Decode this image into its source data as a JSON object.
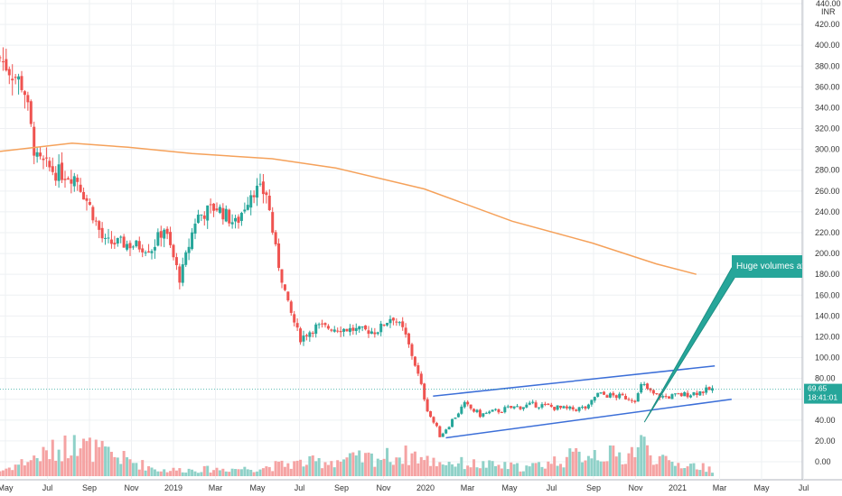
{
  "chart_data": {
    "type": "candlestick",
    "currency_label": "INR",
    "y_axis": {
      "min": 0,
      "max": 440,
      "tick_step": 20,
      "side": "right",
      "top_label": "440.00"
    },
    "x_ticks": [
      "May",
      "Jul",
      "Sep",
      "Nov",
      "2019",
      "Mar",
      "May",
      "Jul",
      "Sep",
      "Nov",
      "2020",
      "Mar",
      "May",
      "Jul",
      "Sep",
      "Nov",
      "2021",
      "Mar",
      "May",
      "Jul"
    ],
    "moving_average": {
      "color": "#f5a15a",
      "points": [
        [
          0,
          298
        ],
        [
          0.09,
          306
        ],
        [
          0.16,
          302
        ],
        [
          0.24,
          296
        ],
        [
          0.34,
          291
        ],
        [
          0.42,
          282
        ],
        [
          0.53,
          262
        ],
        [
          0.64,
          231
        ],
        [
          0.74,
          210
        ],
        [
          0.82,
          190
        ],
        [
          0.87,
          180
        ]
      ]
    },
    "channel": {
      "color": "#3c6fd8",
      "upper": [
        [
          0.541,
          63
        ],
        [
          0.893,
          92
        ]
      ],
      "lower": [
        [
          0.557,
          23
        ],
        [
          0.914,
          60
        ]
      ]
    },
    "last_price": {
      "value": 69.65,
      "label": "69.65",
      "time": "18:41:01",
      "color": "#26a69a"
    },
    "annotation": {
      "text": "Huge volumes at low p",
      "bg": "#26a69a",
      "arrow_target": [
        0.805,
        38
      ]
    },
    "colors": {
      "up": "#26a69a",
      "down": "#ef5350",
      "up_volume": "#8fd1c8",
      "down_volume": "#f5a3a3"
    },
    "price_keypoints": [
      [
        0,
        388
      ],
      [
        0.03,
        360
      ],
      [
        0.045,
        290
      ],
      [
        0.07,
        278
      ],
      [
        0.095,
        274
      ],
      [
        0.115,
        240
      ],
      [
        0.13,
        210
      ],
      [
        0.15,
        210
      ],
      [
        0.19,
        205
      ],
      [
        0.205,
        225
      ],
      [
        0.225,
        175
      ],
      [
        0.245,
        235
      ],
      [
        0.27,
        245
      ],
      [
        0.295,
        228
      ],
      [
        0.315,
        262
      ],
      [
        0.333,
        258
      ],
      [
        0.345,
        200
      ],
      [
        0.36,
        150
      ],
      [
        0.375,
        118
      ],
      [
        0.395,
        130
      ],
      [
        0.42,
        128
      ],
      [
        0.44,
        127
      ],
      [
        0.47,
        125
      ],
      [
        0.49,
        140
      ],
      [
        0.505,
        125
      ],
      [
        0.52,
        90
      ],
      [
        0.535,
        48
      ],
      [
        0.55,
        25
      ],
      [
        0.565,
        40
      ],
      [
        0.58,
        55
      ],
      [
        0.6,
        45
      ],
      [
        0.64,
        52
      ],
      [
        0.67,
        55
      ],
      [
        0.71,
        50
      ],
      [
        0.735,
        52
      ],
      [
        0.745,
        65
      ],
      [
        0.78,
        62
      ],
      [
        0.795,
        60
      ],
      [
        0.802,
        75
      ],
      [
        0.815,
        65
      ],
      [
        0.83,
        62
      ],
      [
        0.86,
        65
      ],
      [
        0.89,
        69.65
      ]
    ],
    "volume_keypoints": [
      [
        0,
        6
      ],
      [
        0.092,
        38
      ],
      [
        0.2,
        7
      ],
      [
        0.32,
        9
      ],
      [
        0.36,
        14
      ],
      [
        0.52,
        25
      ],
      [
        0.53,
        18
      ],
      [
        0.56,
        16
      ],
      [
        0.62,
        12
      ],
      [
        0.66,
        10
      ],
      [
        0.74,
        28
      ],
      [
        0.78,
        22
      ],
      [
        0.802,
        38
      ],
      [
        0.81,
        30
      ],
      [
        0.83,
        16
      ],
      [
        0.87,
        12
      ],
      [
        0.89,
        8
      ]
    ]
  }
}
